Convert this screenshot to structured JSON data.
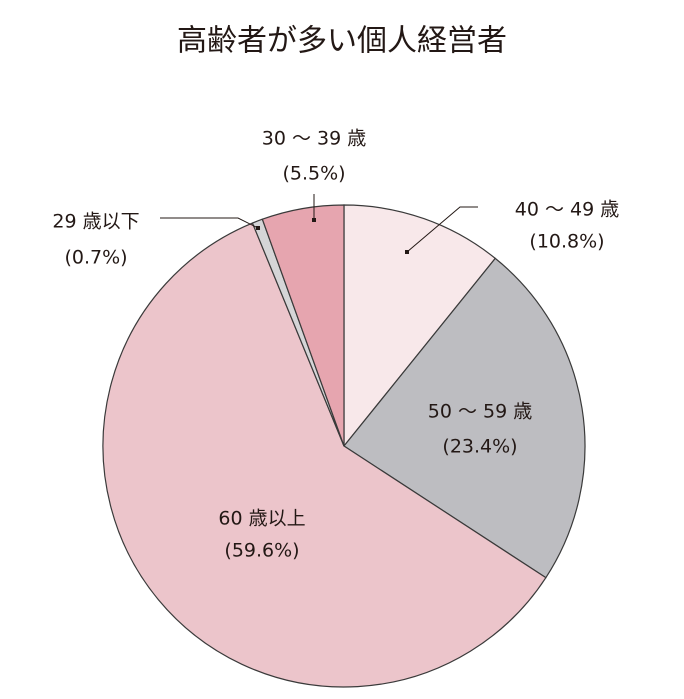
{
  "chart_data": {
    "type": "pie",
    "title": "高齢者が多い個人経営者",
    "categories": [
      "40 〜 49 歳",
      "50 〜 59 歳",
      "60 歳以上",
      "29 歳以下",
      "30 〜 39 歳"
    ],
    "values": [
      10.8,
      23.4,
      59.6,
      0.7,
      5.5
    ],
    "value_labels": [
      "(10.8%)",
      "(23.4%)",
      "(59.6%)",
      "(0.7%)",
      "(5.5%)"
    ],
    "colors": [
      "#f8e8ea",
      "#bdbdc1",
      "#ecc5cb",
      "#d5d5d7",
      "#e6a5af"
    ]
  }
}
